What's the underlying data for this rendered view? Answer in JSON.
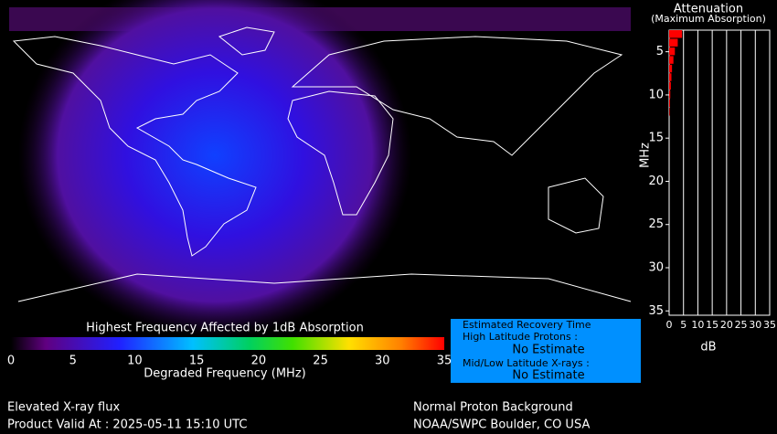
{
  "header": {
    "title": "Attenuation",
    "subtitle": "(Maximum Absorption)"
  },
  "chart_data": {
    "type": "bar",
    "orientation": "horizontal",
    "ylabel": "MHz",
    "xlabel": "dB",
    "color": "#ff0000",
    "y": [
      3,
      4,
      5,
      6,
      7,
      8,
      9,
      10,
      11,
      12
    ],
    "values": [
      4.5,
      3,
      2,
      1.5,
      1,
      0.8,
      0.6,
      0.4,
      0.3,
      0.2
    ],
    "ylim": [
      2.5,
      35.5
    ],
    "yticks": [
      5,
      10,
      15,
      20,
      25,
      30,
      35
    ],
    "xlim": [
      0,
      35
    ],
    "xticks": [
      0,
      5,
      10,
      15,
      20,
      25,
      30,
      35
    ],
    "grid": true
  },
  "colorbar": {
    "title": "Highest Frequency Affected by 1dB Absorption",
    "label": "Degraded Frequency (MHz)",
    "lim": [
      0,
      35
    ],
    "ticks": [
      0,
      5,
      10,
      15,
      20,
      25,
      30,
      35
    ]
  },
  "info_box": {
    "title": "Estimated Recovery Time",
    "high_label": "High Latitude Protons :",
    "high_value": "No Estimate",
    "mid_label": "Mid/Low Latitude X-rays :",
    "mid_value": "No Estimate"
  },
  "footer": {
    "left_1": "Elevated X-ray flux",
    "left_2": "Product Valid At : 2025-05-11 15:10 UTC",
    "right_1": "Normal Proton Background",
    "right_2": "NOAA/SWPC Boulder, CO USA"
  }
}
